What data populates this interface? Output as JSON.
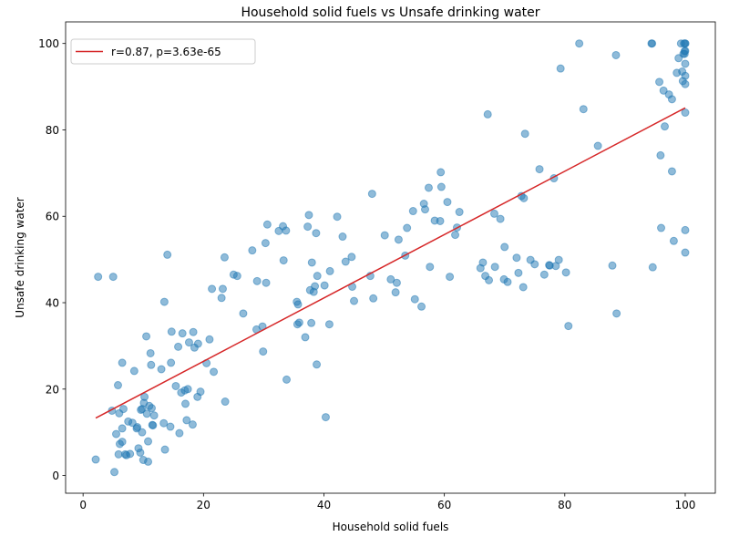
{
  "chart_data": {
    "type": "scatter",
    "title": "Household solid fuels vs Unsafe drinking water",
    "xlabel": "Household solid fuels",
    "ylabel": "Unsafe drinking water",
    "xlim": [
      -2.9,
      105
    ],
    "ylim": [
      -4.1,
      105
    ],
    "xticks": [
      0,
      20,
      40,
      60,
      80,
      100
    ],
    "yticks": [
      0,
      20,
      40,
      60,
      80,
      100
    ],
    "grid": false,
    "legend_position": "upper left",
    "colors": {
      "points": "#1f77b4",
      "fit_line": "#d62728"
    },
    "fit_line": {
      "label": "r=0.87, p=3.63e-65",
      "x": [
        2.1,
        100
      ],
      "y": [
        13.3,
        85.1
      ]
    },
    "points": [
      [
        2.1,
        3.7
      ],
      [
        2.5,
        46
      ],
      [
        4.8,
        15
      ],
      [
        5,
        46
      ],
      [
        5.2,
        0.8
      ],
      [
        5.5,
        9.6
      ],
      [
        5.8,
        20.9
      ],
      [
        5.9,
        4.9
      ],
      [
        6,
        14.4
      ],
      [
        6.1,
        7.3
      ],
      [
        6.5,
        26.1
      ],
      [
        6.5,
        7.8
      ],
      [
        6.5,
        10.9
      ],
      [
        6.7,
        15.4
      ],
      [
        7,
        4.9
      ],
      [
        7.2,
        4.7
      ],
      [
        7.5,
        12.5
      ],
      [
        7.8,
        5
      ],
      [
        8.2,
        12.2
      ],
      [
        8.5,
        24.2
      ],
      [
        8.9,
        10.9
      ],
      [
        9,
        11.2
      ],
      [
        9.2,
        6.3
      ],
      [
        9.5,
        5.3
      ],
      [
        9.6,
        15.2
      ],
      [
        9.8,
        10
      ],
      [
        9.8,
        15.4
      ],
      [
        10,
        3.6
      ],
      [
        10.1,
        16.8
      ],
      [
        10.2,
        18.2
      ],
      [
        10.5,
        32.2
      ],
      [
        10.6,
        14.3
      ],
      [
        10.8,
        3.2
      ],
      [
        10.8,
        7.9
      ],
      [
        11,
        16.1
      ],
      [
        11.2,
        28.3
      ],
      [
        11.3,
        25.6
      ],
      [
        11.4,
        15.6
      ],
      [
        11.5,
        11.7
      ],
      [
        11.6,
        11.6
      ],
      [
        11.8,
        13.9
      ],
      [
        13,
        24.6
      ],
      [
        13.4,
        12.1
      ],
      [
        13.5,
        40.2
      ],
      [
        13.6,
        6
      ],
      [
        14,
        51.1
      ],
      [
        14.5,
        11.3
      ],
      [
        14.6,
        26.1
      ],
      [
        14.7,
        33.3
      ],
      [
        15.4,
        20.7
      ],
      [
        15.8,
        29.8
      ],
      [
        16,
        9.8
      ],
      [
        16.3,
        19.2
      ],
      [
        16.5,
        32.9
      ],
      [
        16.9,
        19.7
      ],
      [
        17,
        16.6
      ],
      [
        17.2,
        12.8
      ],
      [
        17.4,
        20
      ],
      [
        17.6,
        30.8
      ],
      [
        18.2,
        11.8
      ],
      [
        18.3,
        33.2
      ],
      [
        18.5,
        29.6
      ],
      [
        19,
        18.2
      ],
      [
        19.1,
        30.5
      ],
      [
        19.5,
        19.4
      ],
      [
        20.5,
        26
      ],
      [
        21,
        31.5
      ],
      [
        21.4,
        43.2
      ],
      [
        21.7,
        24
      ],
      [
        23,
        41.1
      ],
      [
        23.2,
        43.2
      ],
      [
        23.5,
        50.5
      ],
      [
        23.6,
        17.1
      ],
      [
        25,
        46.5
      ],
      [
        25.6,
        46.2
      ],
      [
        26.6,
        37.5
      ],
      [
        28.1,
        52.1
      ],
      [
        28.8,
        33.8
      ],
      [
        28.9,
        45
      ],
      [
        29.8,
        34.5
      ],
      [
        29.9,
        28.7
      ],
      [
        30.3,
        53.8
      ],
      [
        30.4,
        44.6
      ],
      [
        30.6,
        58.1
      ],
      [
        32.5,
        56.6
      ],
      [
        33.2,
        57.7
      ],
      [
        33.3,
        49.8
      ],
      [
        33.7,
        56.7
      ],
      [
        33.8,
        22.2
      ],
      [
        35.5,
        40.2
      ],
      [
        35.6,
        35
      ],
      [
        35.7,
        39.6
      ],
      [
        35.9,
        35.4
      ],
      [
        36.9,
        32
      ],
      [
        37.3,
        57.6
      ],
      [
        37.5,
        60.3
      ],
      [
        37.7,
        42.9
      ],
      [
        37.9,
        35.3
      ],
      [
        38,
        49.3
      ],
      [
        38.3,
        42.5
      ],
      [
        38.5,
        43.8
      ],
      [
        38.7,
        56.1
      ],
      [
        38.8,
        25.7
      ],
      [
        38.9,
        46.2
      ],
      [
        40.1,
        44
      ],
      [
        40.3,
        13.5
      ],
      [
        40.9,
        35
      ],
      [
        41,
        47.3
      ],
      [
        42.2,
        59.9
      ],
      [
        43.1,
        55.3
      ],
      [
        43.6,
        49.5
      ],
      [
        44.6,
        50.6
      ],
      [
        44.7,
        43.7
      ],
      [
        45,
        40.4
      ],
      [
        47.7,
        46.2
      ],
      [
        48,
        65.2
      ],
      [
        48.2,
        41
      ],
      [
        50.1,
        55.6
      ],
      [
        51.1,
        45.4
      ],
      [
        51.9,
        42.4
      ],
      [
        52.1,
        44.6
      ],
      [
        52.4,
        54.6
      ],
      [
        53.5,
        50.9
      ],
      [
        53.8,
        57.3
      ],
      [
        54.8,
        61.2
      ],
      [
        55.1,
        40.8
      ],
      [
        56.2,
        39.1
      ],
      [
        56.6,
        62.9
      ],
      [
        56.8,
        61.6
      ],
      [
        57.4,
        66.6
      ],
      [
        57.6,
        48.3
      ],
      [
        58.4,
        59
      ],
      [
        59.3,
        58.9
      ],
      [
        59.4,
        70.2
      ],
      [
        59.5,
        66.8
      ],
      [
        60.5,
        63.3
      ],
      [
        60.9,
        46
      ],
      [
        61.8,
        55.7
      ],
      [
        62.1,
        57.4
      ],
      [
        62.5,
        61
      ],
      [
        66,
        48
      ],
      [
        66.4,
        49.3
      ],
      [
        66.8,
        46.2
      ],
      [
        67.2,
        83.6
      ],
      [
        67.4,
        45.2
      ],
      [
        68.3,
        60.6
      ],
      [
        68.4,
        48.3
      ],
      [
        69.3,
        59.4
      ],
      [
        69.9,
        45.4
      ],
      [
        70,
        52.9
      ],
      [
        70.5,
        44.8
      ],
      [
        72,
        50.4
      ],
      [
        72.3,
        46.9
      ],
      [
        72.8,
        64.7
      ],
      [
        73.1,
        43.6
      ],
      [
        73.2,
        64.2
      ],
      [
        73.4,
        79.1
      ],
      [
        74.3,
        49.9
      ],
      [
        75,
        48.9
      ],
      [
        75.8,
        70.9
      ],
      [
        76.6,
        46.5
      ],
      [
        77.4,
        48.7
      ],
      [
        77.5,
        48.6
      ],
      [
        78.2,
        68.8
      ],
      [
        78.5,
        48.5
      ],
      [
        79,
        49.9
      ],
      [
        79.3,
        94.2
      ],
      [
        80.2,
        47
      ],
      [
        80.6,
        34.6
      ],
      [
        82.4,
        100
      ],
      [
        83.1,
        84.8
      ],
      [
        85.5,
        76.3
      ],
      [
        87.9,
        48.6
      ],
      [
        88.5,
        97.3
      ],
      [
        88.6,
        37.5
      ],
      [
        94.4,
        100
      ],
      [
        94.5,
        100
      ],
      [
        94.6,
        48.2
      ],
      [
        95.7,
        91.1
      ],
      [
        95.9,
        74.1
      ],
      [
        96,
        57.3
      ],
      [
        96.4,
        89.1
      ],
      [
        96.6,
        80.8
      ],
      [
        97.3,
        88.2
      ],
      [
        97.8,
        87.1
      ],
      [
        97.8,
        70.4
      ],
      [
        98.1,
        54.3
      ],
      [
        98.6,
        93.2
      ],
      [
        98.9,
        96.6
      ],
      [
        99.3,
        100
      ],
      [
        99.5,
        93.5
      ],
      [
        99.6,
        91.3
      ],
      [
        99.7,
        97.6
      ],
      [
        99.8,
        100
      ],
      [
        99.9,
        98.2
      ],
      [
        99.9,
        97.6
      ],
      [
        100,
        100
      ],
      [
        100,
        100
      ],
      [
        100,
        90.6
      ],
      [
        100,
        92.5
      ],
      [
        100,
        95.3
      ],
      [
        100,
        98.3
      ],
      [
        100,
        84
      ],
      [
        100,
        56.8
      ],
      [
        100,
        51.6
      ]
    ]
  }
}
